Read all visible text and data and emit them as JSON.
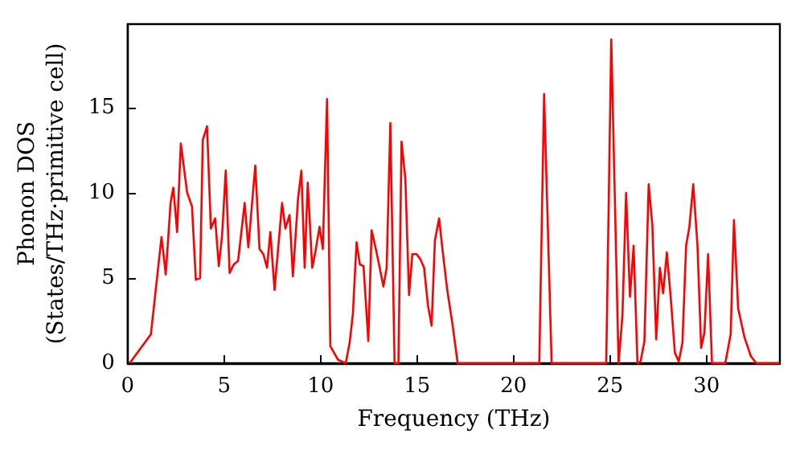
{
  "chart_data": {
    "type": "line",
    "xlabel": "Frequency (THz)",
    "ylabel": "Phonon DOS\n(States/THz·primitive cell)",
    "x": [
      0.1,
      1.2,
      1.75,
      1.97,
      2.22,
      2.36,
      2.56,
      2.75,
      3.08,
      3.33,
      3.53,
      3.75,
      3.89,
      4.11,
      4.31,
      4.53,
      4.72,
      4.89,
      5.08,
      5.28,
      5.5,
      5.72,
      6.06,
      6.25,
      6.61,
      6.83,
      7.03,
      7.22,
      7.39,
      7.61,
      8.0,
      8.17,
      8.39,
      8.56,
      8.83,
      9.0,
      9.17,
      9.33,
      9.56,
      9.72,
      9.94,
      10.11,
      10.33,
      10.5,
      10.9,
      11.3,
      11.5,
      11.67,
      11.86,
      12.03,
      12.22,
      12.47,
      12.64,
      12.86,
      13.06,
      13.25,
      13.42,
      13.61,
      13.83,
      14.03,
      14.19,
      14.39,
      14.58,
      14.75,
      14.97,
      15.17,
      15.36,
      15.56,
      15.75,
      15.92,
      16.14,
      16.33,
      16.56,
      16.83,
      17.1,
      21.33,
      21.58,
      21.97,
      24.8,
      25.06,
      25.44,
      25.64,
      25.83,
      26.03,
      26.22,
      26.42,
      26.58,
      26.78,
      27.0,
      27.19,
      27.39,
      27.58,
      27.75,
      27.94,
      28.14,
      28.36,
      28.56,
      28.75,
      28.94,
      29.11,
      29.31,
      29.53,
      29.72,
      29.89,
      30.08,
      30.28,
      30.97,
      31.25,
      31.42,
      31.64,
      31.97,
      32.3,
      32.58,
      33.8
    ],
    "series": [
      {
        "color": "#ff0000",
        "values": [
          0,
          1.7,
          7.4,
          5.2,
          9.4,
          10.3,
          7.7,
          12.9,
          10.0,
          9.2,
          4.9,
          5.0,
          13.1,
          13.9,
          7.9,
          8.5,
          5.7,
          7.5,
          11.3,
          5.3,
          5.8,
          6.0,
          9.4,
          6.8,
          11.6,
          6.7,
          6.4,
          5.6,
          7.7,
          4.3,
          9.4,
          7.9,
          8.7,
          5.1,
          9.7,
          11.3,
          5.6,
          10.6,
          5.6,
          6.5,
          8.0,
          6.7,
          15.5,
          1.0,
          0.2,
          0,
          1.2,
          2.9,
          7.1,
          5.8,
          5.7,
          1.3,
          7.8,
          6.7,
          5.6,
          4.5,
          5.6,
          14.1,
          0,
          0,
          13.0,
          10.8,
          4.0,
          6.4,
          6.4,
          6.1,
          5.6,
          3.4,
          2.2,
          7.2,
          8.5,
          6.5,
          4.3,
          2.3,
          0,
          0,
          15.8,
          0,
          0,
          19.0,
          0,
          2.8,
          10.0,
          3.9,
          6.9,
          0,
          0.1,
          1.3,
          10.5,
          8.1,
          1.4,
          5.6,
          4.1,
          6.5,
          3.9,
          0.6,
          0.1,
          1.2,
          6.9,
          8.0,
          10.5,
          6.9,
          0.9,
          1.8,
          6.4,
          0,
          0,
          1.7,
          8.4,
          3.2,
          1.5,
          0.4,
          0,
          0
        ]
      }
    ],
    "xlim": [
      0,
      33.8
    ],
    "xticks": [
      0,
      5,
      10,
      15,
      20,
      25,
      30
    ],
    "ylim": [
      0,
      19.9
    ],
    "yticks": [
      0,
      5,
      10,
      15
    ],
    "grid": false,
    "marker": "none",
    "line_style": "solid"
  }
}
